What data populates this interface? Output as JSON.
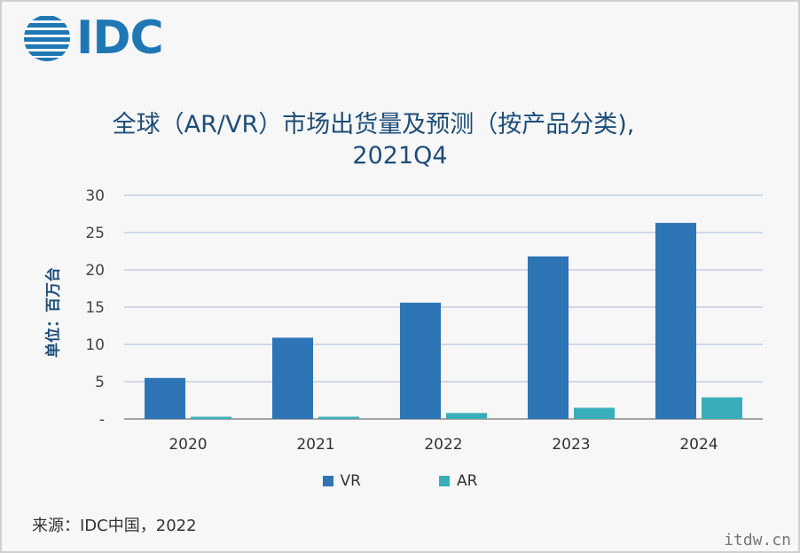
{
  "logo": {
    "text": "IDC"
  },
  "title": {
    "line1": "全球（AR/VR）市场出货量及预测（按产品分类),",
    "line2": "2021Q4"
  },
  "source": "来源：IDC中国，2022",
  "watermark": "itdw.cn",
  "chart_data": {
    "type": "bar",
    "title": "全球（AR/VR）市场出货量及预测（按产品分类), 2021Q4",
    "categories": [
      "2020",
      "2021",
      "2022",
      "2023",
      "2024"
    ],
    "series": [
      {
        "name": "VR",
        "values": [
          5.5,
          10.9,
          15.6,
          21.8,
          26.3
        ],
        "color": "#2e75b6"
      },
      {
        "name": "AR",
        "values": [
          0.3,
          0.3,
          0.8,
          1.5,
          2.9
        ],
        "color": "#3aaeb8"
      }
    ],
    "xlabel": "",
    "ylabel": "单位：百万台",
    "ylim": [
      0,
      30
    ],
    "yticks": [
      "-",
      "5",
      "10",
      "15",
      "20",
      "25",
      "30"
    ],
    "grid": true,
    "legend": "bottom"
  }
}
